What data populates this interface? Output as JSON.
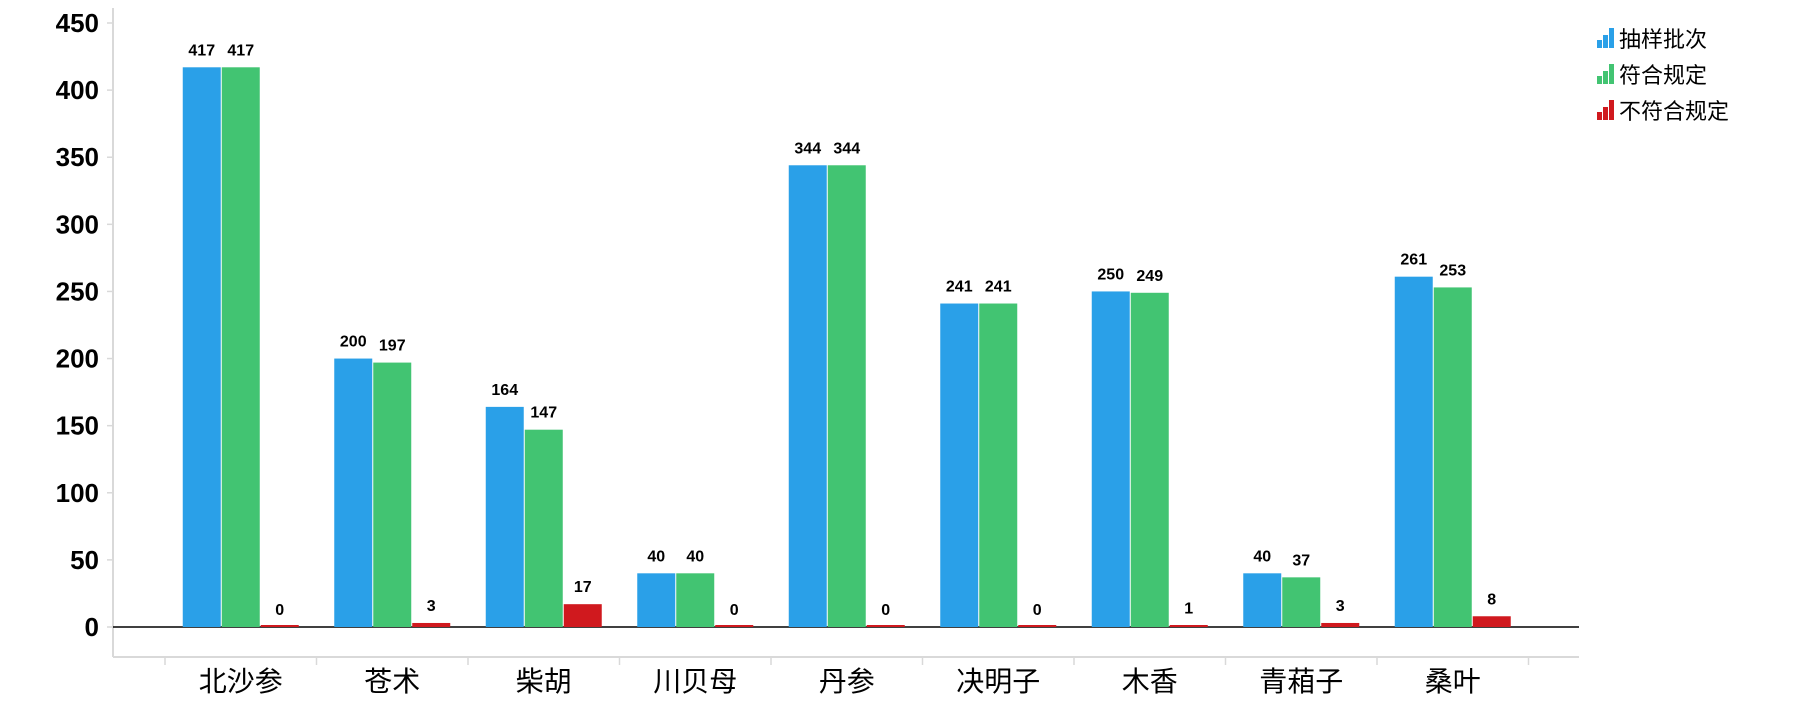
{
  "chart_data": {
    "type": "bar",
    "title": "",
    "xlabel": "",
    "ylabel": "",
    "ylim": [
      0,
      450
    ],
    "yticks": [
      0,
      50,
      100,
      150,
      200,
      250,
      300,
      350,
      400,
      450
    ],
    "grid": false,
    "legend_position": "top-right",
    "categories": [
      "北沙参",
      "苍术",
      "柴胡",
      "川贝母",
      "丹参",
      "决明子",
      "木香",
      "青葙子",
      "桑叶"
    ],
    "series": [
      {
        "name": "抽样批次",
        "color": "#2aa0e8",
        "values": [
          417,
          200,
          164,
          40,
          344,
          241,
          250,
          40,
          261
        ]
      },
      {
        "name": "符合规定",
        "color": "#42c472",
        "values": [
          417,
          197,
          147,
          40,
          344,
          241,
          249,
          37,
          253
        ]
      },
      {
        "name": "不符合规定",
        "color": "#d0191e",
        "values": [
          0,
          3,
          17,
          0,
          0,
          0,
          1,
          3,
          8
        ]
      }
    ]
  }
}
